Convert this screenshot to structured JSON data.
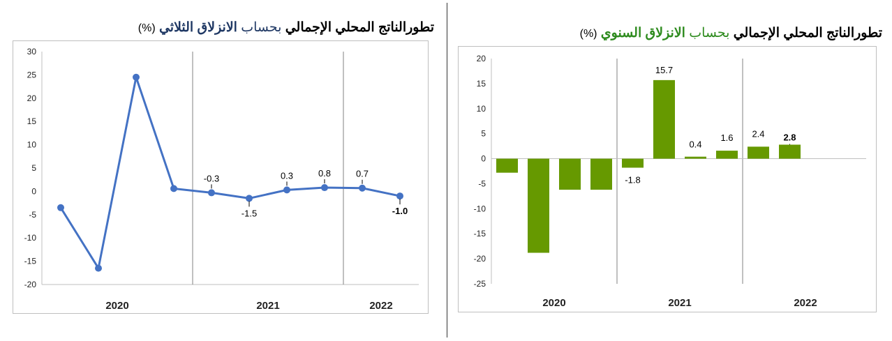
{
  "left_chart": {
    "title_parts": [
      "تطورالناتج المحلي الإجمالي",
      "بحساب",
      "الانزلاق الثلاثي",
      "(%)"
    ],
    "accent": "#4472c4",
    "chart_data": {
      "type": "line",
      "title": "تطورالناتج المحلي الإجمالي بحساب الانزلاق الثلاثي (%)",
      "xlabel": "",
      "ylabel": "",
      "ylim": [
        -20,
        30
      ],
      "yticks": [
        30,
        25,
        20,
        15,
        10,
        5,
        0,
        -5,
        -10,
        -15,
        -20
      ],
      "year_labels": [
        "2020",
        "2021",
        "2022"
      ],
      "grid": "vertical separators between years",
      "series": [
        {
          "values": [
            -3.5,
            -16.5,
            24.5,
            0.6,
            -0.3,
            -1.5,
            0.3,
            0.8,
            0.7,
            -1.0
          ]
        }
      ],
      "data_labels": [
        {
          "index": 4,
          "text": "-0.3"
        },
        {
          "index": 5,
          "text": "-1.5"
        },
        {
          "index": 6,
          "text": "0.3"
        },
        {
          "index": 7,
          "text": "0.8"
        },
        {
          "index": 8,
          "text": "0.7"
        },
        {
          "index": 9,
          "text": "-1.0"
        }
      ]
    }
  },
  "right_chart": {
    "title_parts": [
      "تطورالناتج المحلي الإجمالي",
      "بحساب",
      "الانزلاق السنوي",
      "(%)"
    ],
    "accent": "#669900",
    "chart_data": {
      "type": "bar",
      "title": "تطورالناتج المحلي الإجمالي بحساب الانزلاق السنوي (%)",
      "xlabel": "",
      "ylabel": "",
      "ylim": [
        -25,
        20
      ],
      "yticks": [
        20,
        15,
        10,
        5,
        0,
        -5,
        -10,
        -15,
        -20,
        -25
      ],
      "year_labels": [
        "2020",
        "2021",
        "2022"
      ],
      "grid": "vertical separators between years",
      "series": [
        {
          "values": [
            -2.8,
            -18.8,
            -6.2,
            -6.2,
            -1.8,
            15.7,
            0.4,
            1.6,
            2.4,
            2.8
          ]
        }
      ],
      "data_labels": [
        {
          "index": 4,
          "text": "-1.8"
        },
        {
          "index": 5,
          "text": "15.7"
        },
        {
          "index": 6,
          "text": "0.4"
        },
        {
          "index": 7,
          "text": "1.6"
        },
        {
          "index": 8,
          "text": "2.4"
        },
        {
          "index": 9,
          "text": "2.8"
        }
      ]
    }
  }
}
